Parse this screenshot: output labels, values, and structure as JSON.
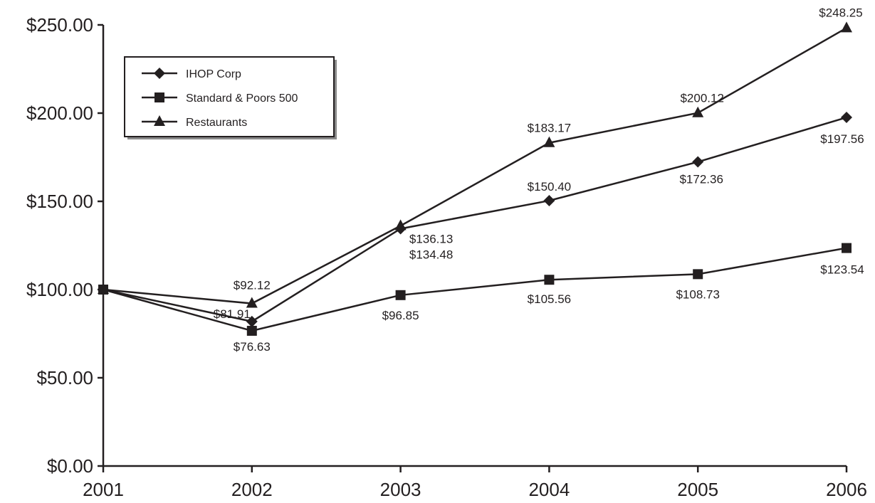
{
  "chart_data": {
    "type": "line",
    "title": "",
    "xlabel": "",
    "ylabel": "",
    "categories": [
      "2001",
      "2002",
      "2003",
      "2004",
      "2005",
      "2006"
    ],
    "ylim": [
      0,
      250
    ],
    "y_ticks": [
      "$0.00",
      "$50.00",
      "$100.00",
      "$150.00",
      "$200.00",
      "$250.00"
    ],
    "grid": false,
    "legend_position": "top-left",
    "series": [
      {
        "name": "IHOP Corp",
        "marker": "diamond",
        "values": [
          100.0,
          81.91,
          134.48,
          150.4,
          172.36,
          197.56
        ],
        "labels": [
          "",
          "$81.91",
          "$134.48",
          "$150.40",
          "$172.36",
          "$197.56"
        ]
      },
      {
        "name": "Standard & Poors 500",
        "marker": "square",
        "values": [
          100.0,
          76.63,
          96.85,
          105.56,
          108.73,
          123.54
        ],
        "labels": [
          "",
          "$76.63",
          "$96.85",
          "$105.56",
          "$108.73",
          "$123.54"
        ]
      },
      {
        "name": "Restaurants",
        "marker": "triangle",
        "values": [
          100.0,
          92.12,
          136.13,
          183.17,
          200.12,
          248.25
        ],
        "labels": [
          "",
          "$92.12",
          "$136.13",
          "$183.17",
          "$200.12",
          "$248.25"
        ]
      }
    ]
  }
}
